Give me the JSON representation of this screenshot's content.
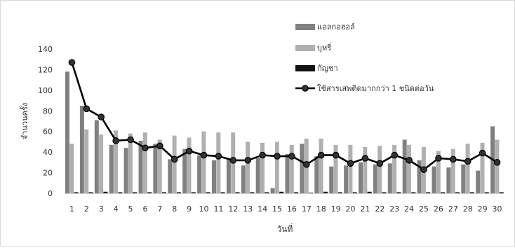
{
  "chart_data": {
    "type": "bar",
    "xlabel": "วันที่",
    "ylabel": "จำนวนครั้ง",
    "ylim": [
      0,
      140
    ],
    "yticks": [
      0,
      20,
      40,
      60,
      80,
      100,
      120,
      140
    ],
    "grid": false,
    "legend_position": "top-right",
    "categories": [
      "1",
      "2",
      "3",
      "4",
      "5",
      "6",
      "7",
      "8",
      "9",
      "10",
      "11",
      "12",
      "13",
      "14",
      "15",
      "16",
      "17",
      "18",
      "19",
      "20",
      "21",
      "22",
      "23",
      "24",
      "25",
      "26",
      "27",
      "28",
      "29",
      "30"
    ],
    "series": [
      {
        "name": "แอลกอฮอล์",
        "kind": "bar",
        "color": "#808080",
        "values": [
          118,
          85,
          71,
          47,
          44,
          51,
          48,
          33,
          43,
          37,
          32,
          33,
          27,
          34,
          5,
          38,
          48,
          36,
          26,
          27,
          30,
          28,
          29,
          52,
          32,
          26,
          25,
          28,
          22,
          65
        ]
      },
      {
        "name": "บุหรี่",
        "kind": "bar",
        "color": "#b0b0b0",
        "values": [
          48,
          62,
          57,
          61,
          58,
          59,
          52,
          56,
          54,
          60,
          59,
          59,
          50,
          49,
          50,
          47,
          53,
          53,
          47,
          47,
          45,
          46,
          47,
          47,
          45,
          41,
          43,
          48,
          49,
          52
        ]
      },
      {
        "name": "กัญชา",
        "kind": "bar",
        "color": "#111111",
        "values": [
          1,
          1,
          1.5,
          1,
          1,
          1,
          1,
          1,
          1,
          1,
          1,
          1,
          1,
          1,
          1.5,
          1,
          0.5,
          1.5,
          1,
          1,
          1.5,
          1,
          1,
          1,
          1,
          1,
          1,
          1,
          1,
          1
        ]
      },
      {
        "name": "ใช้สารเสพติดมากกว่า 1 ชนิดต่อวัน",
        "kind": "line",
        "color": "#000000",
        "values": [
          127,
          82,
          74,
          51,
          52,
          44,
          46,
          33,
          41,
          37,
          36,
          32,
          32,
          37,
          36,
          36,
          28,
          37,
          37,
          29,
          34,
          29,
          37,
          32,
          23,
          34,
          33,
          31,
          39,
          30
        ]
      }
    ]
  }
}
